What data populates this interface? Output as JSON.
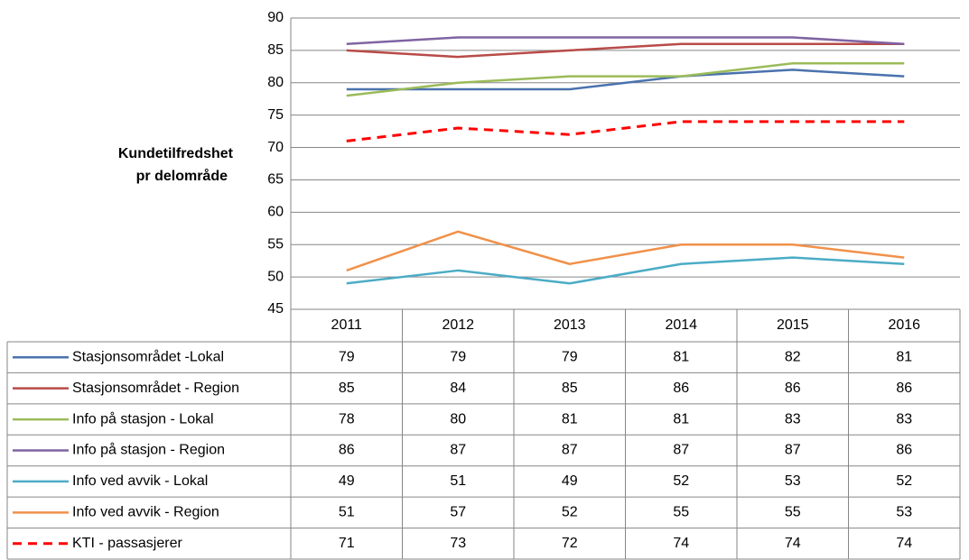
{
  "chart_data": {
    "type": "line",
    "y_label": [
      "Kundetilfredshet",
      "pr delområde"
    ],
    "categories": [
      "2011",
      "2012",
      "2013",
      "2014",
      "2015",
      "2016"
    ],
    "ylim": [
      45,
      90
    ],
    "yticks": [
      45,
      50,
      55,
      60,
      65,
      70,
      75,
      80,
      85,
      90
    ],
    "grid": true,
    "series": [
      {
        "name": "Stasjonsområdet  -Lokal",
        "color": "#4a72ad",
        "values": [
          79,
          79,
          79,
          81,
          82,
          81
        ]
      },
      {
        "name": "Stasjonsområdet - Region",
        "color": "#b84b48",
        "values": [
          85,
          84,
          85,
          86,
          86,
          86
        ]
      },
      {
        "name": "Info på stasjon - Lokal",
        "color": "#9bbb59",
        "values": [
          78,
          80,
          81,
          81,
          83,
          83
        ]
      },
      {
        "name": "Info på stasjon - Region",
        "color": "#8064a2",
        "values": [
          86,
          87,
          87,
          87,
          87,
          86
        ]
      },
      {
        "name": "Info ved avvik - Lokal",
        "color": "#4bacc6",
        "values": [
          49,
          51,
          49,
          52,
          53,
          52
        ]
      },
      {
        "name": "Info ved avvik - Region",
        "color": "#f0914a",
        "values": [
          51,
          57,
          52,
          55,
          55,
          53
        ]
      },
      {
        "name": "KTI - passasjerer",
        "color": "#ff0000",
        "dashed": true,
        "values": [
          71,
          73,
          72,
          74,
          74,
          74
        ]
      }
    ]
  }
}
